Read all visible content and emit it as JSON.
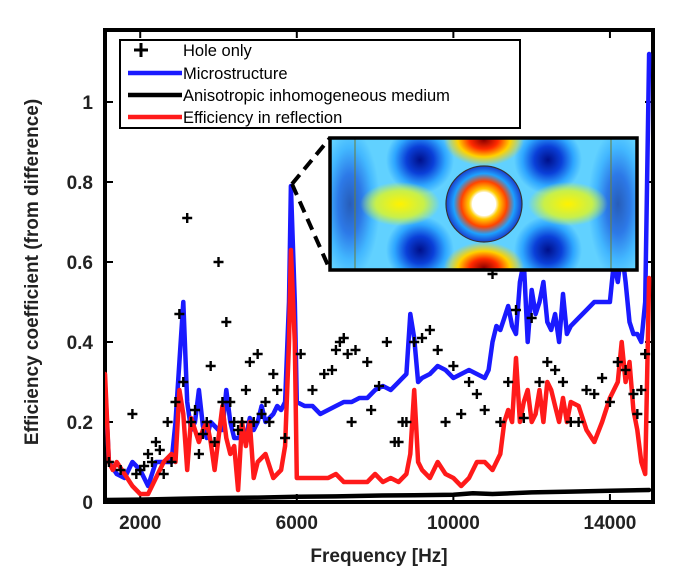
{
  "chart_data": {
    "type": "line",
    "xlabel": "Frequency [Hz]",
    "ylabel": "Efficiency coefficient (from difference)",
    "xlim": [
      1100,
      15100
    ],
    "ylim": [
      0,
      1.18
    ],
    "xticks": [
      2000,
      6000,
      10000,
      14000
    ],
    "xtick_labels": [
      "2000",
      "6000",
      "10000",
      "14000"
    ],
    "yticks": [
      0,
      0.2,
      0.4,
      0.6,
      0.8,
      1
    ],
    "ytick_labels": [
      "0",
      "0.2",
      "0.4",
      "0.6",
      "0.8",
      "1"
    ],
    "legend_position": "top-left",
    "inset": {
      "description": "field map of microstructure around hole",
      "anchor_frequency": 5900,
      "anchor_value": 0.8
    },
    "series": [
      {
        "name": "Hole only",
        "style": "scatter-plus",
        "color": "#000000",
        "x": [
          1200,
          1500,
          1800,
          1900,
          2000,
          2100,
          2200,
          2300,
          2400,
          2500,
          2600,
          2700,
          2800,
          2900,
          3000,
          3100,
          3200,
          3300,
          3400,
          3500,
          3600,
          3700,
          3800,
          3900,
          4000,
          4100,
          4200,
          4300,
          4400,
          4500,
          4600,
          4700,
          4800,
          4900,
          5000,
          5100,
          5200,
          5300,
          5400,
          5500,
          5700,
          6100,
          6400,
          6700,
          6900,
          7000,
          7100,
          7200,
          7300,
          7400,
          7500,
          7800,
          7900,
          8100,
          8300,
          8500,
          8600,
          8700,
          8800,
          9000,
          9200,
          9400,
          9600,
          9800,
          10000,
          10200,
          10400,
          10600,
          10800,
          11000,
          11200,
          11400,
          11600,
          11800,
          12000,
          12200,
          12400,
          12600,
          12800,
          13000,
          13200,
          13400,
          13600,
          13800,
          14000,
          14200,
          14400,
          14600,
          14700,
          14800,
          14900
        ],
        "y": [
          0.1,
          0.08,
          0.22,
          0.07,
          0.08,
          0.09,
          0.12,
          0.1,
          0.15,
          0.13,
          0.07,
          0.2,
          0.1,
          0.25,
          0.47,
          0.3,
          0.71,
          0.2,
          0.23,
          0.12,
          0.17,
          0.2,
          0.34,
          0.15,
          0.6,
          0.25,
          0.45,
          0.25,
          0.2,
          0.18,
          0.2,
          0.28,
          0.35,
          0.2,
          0.37,
          0.22,
          0.25,
          0.2,
          0.32,
          0.28,
          0.16,
          0.37,
          0.28,
          0.32,
          0.33,
          0.38,
          0.4,
          0.41,
          0.37,
          0.2,
          0.38,
          0.35,
          0.23,
          0.29,
          0.4,
          0.15,
          0.15,
          0.2,
          0.2,
          0.4,
          0.41,
          0.43,
          0.38,
          0.2,
          0.34,
          0.22,
          0.3,
          0.27,
          0.23,
          0.57,
          0.2,
          0.3,
          0.48,
          0.21,
          0.46,
          0.3,
          0.35,
          0.33,
          0.3,
          0.2,
          0.2,
          0.28,
          0.27,
          0.31,
          0.25,
          0.35,
          0.33,
          0.27,
          0.22,
          0.28,
          0.37
        ]
      },
      {
        "name": "Microstructure",
        "style": "line",
        "color": "#1a1aff",
        "x": [
          1100,
          1200,
          1400,
          1600,
          1800,
          2000,
          2200,
          2400,
          2600,
          2800,
          2900,
          3000,
          3100,
          3200,
          3300,
          3400,
          3500,
          3600,
          3700,
          3800,
          3900,
          4000,
          4100,
          4200,
          4300,
          4400,
          4500,
          4600,
          4700,
          4800,
          4900,
          5000,
          5100,
          5200,
          5300,
          5400,
          5500,
          5600,
          5700,
          5800,
          5850,
          5950,
          6000,
          6200,
          6400,
          6600,
          6800,
          7000,
          7200,
          7400,
          7600,
          7800,
          8000,
          8200,
          8400,
          8600,
          8800,
          8900,
          9000,
          9100,
          9200,
          9400,
          9600,
          9800,
          10000,
          10200,
          10400,
          10600,
          10800,
          10900,
          11000,
          11100,
          11200,
          11300,
          11400,
          11500,
          11600,
          11700,
          11800,
          11900,
          12000,
          12100,
          12200,
          12300,
          12400,
          12500,
          12600,
          12700,
          12800,
          12900,
          13000,
          13200,
          13400,
          13600,
          13800,
          14000,
          14100,
          14200,
          14300,
          14400,
          14500,
          14600,
          14700,
          14800,
          14900,
          15000
        ],
        "y": [
          0.3,
          0.1,
          0.07,
          0.06,
          0.1,
          0.08,
          0.04,
          0.1,
          0.1,
          0.1,
          0.2,
          0.35,
          0.5,
          0.25,
          0.18,
          0.2,
          0.28,
          0.19,
          0.16,
          0.2,
          0.19,
          0.18,
          0.18,
          0.28,
          0.2,
          0.16,
          0.16,
          0.17,
          0.16,
          0.21,
          0.18,
          0.2,
          0.24,
          0.2,
          0.21,
          0.22,
          0.24,
          0.23,
          0.25,
          0.5,
          0.79,
          0.5,
          0.25,
          0.24,
          0.24,
          0.22,
          0.23,
          0.24,
          0.25,
          0.25,
          0.26,
          0.26,
          0.28,
          0.29,
          0.28,
          0.3,
          0.32,
          0.47,
          0.41,
          0.3,
          0.31,
          0.32,
          0.34,
          0.33,
          0.31,
          0.32,
          0.33,
          0.32,
          0.31,
          0.33,
          0.4,
          0.44,
          0.43,
          0.46,
          0.49,
          0.44,
          0.42,
          0.55,
          0.6,
          0.4,
          0.53,
          0.47,
          0.5,
          0.55,
          0.45,
          0.43,
          0.47,
          0.4,
          0.52,
          0.42,
          0.44,
          0.46,
          0.48,
          0.5,
          0.5,
          0.5,
          0.6,
          0.55,
          0.63,
          0.55,
          0.45,
          0.42,
          0.42,
          0.4,
          0.5,
          1.12
        ]
      },
      {
        "name": "Anisotropic inhomogeneous medium",
        "style": "line",
        "color": "#000000",
        "x": [
          1100,
          2000,
          3000,
          4000,
          5000,
          6000,
          7000,
          8000,
          9000,
          10000,
          10500,
          11000,
          12000,
          13000,
          14000,
          15000
        ],
        "y": [
          0.005,
          0.006,
          0.008,
          0.01,
          0.011,
          0.013,
          0.014,
          0.016,
          0.017,
          0.018,
          0.022,
          0.02,
          0.024,
          0.026,
          0.028,
          0.03
        ]
      },
      {
        "name": "Efficiency in reflection",
        "style": "line",
        "color": "#ff1a1a",
        "x": [
          1100,
          1200,
          1300,
          1400,
          1600,
          1800,
          2000,
          2200,
          2400,
          2600,
          2800,
          2900,
          3000,
          3100,
          3200,
          3300,
          3400,
          3500,
          3600,
          3700,
          3800,
          3900,
          4000,
          4100,
          4200,
          4300,
          4400,
          4500,
          4600,
          4700,
          4800,
          4900,
          5000,
          5200,
          5400,
          5600,
          5700,
          5800,
          5850,
          5950,
          6000,
          6200,
          6400,
          6600,
          6800,
          7000,
          7200,
          7400,
          7600,
          7800,
          8000,
          8200,
          8400,
          8600,
          8800,
          8900,
          9000,
          9100,
          9200,
          9400,
          9600,
          9800,
          10000,
          10200,
          10400,
          10600,
          10800,
          11000,
          11200,
          11300,
          11400,
          11500,
          11600,
          11700,
          11800,
          11900,
          12000,
          12100,
          12200,
          12300,
          12400,
          12500,
          12600,
          12700,
          12800,
          12900,
          13000,
          13200,
          13400,
          13600,
          13800,
          14000,
          14200,
          14300,
          14400,
          14500,
          14600,
          14700,
          14800,
          14900,
          15000
        ],
        "y": [
          0.32,
          0.1,
          0.08,
          0.1,
          0.07,
          0.04,
          0.02,
          0.02,
          0.06,
          0.1,
          0.12,
          0.1,
          0.28,
          0.22,
          0.08,
          0.21,
          0.18,
          0.15,
          0.18,
          0.2,
          0.15,
          0.08,
          0.16,
          0.24,
          0.16,
          0.12,
          0.14,
          0.03,
          0.2,
          0.14,
          0.2,
          0.06,
          0.1,
          0.12,
          0.06,
          0.08,
          0.14,
          0.4,
          0.63,
          0.4,
          0.06,
          0.06,
          0.06,
          0.06,
          0.06,
          0.07,
          0.05,
          0.05,
          0.05,
          0.05,
          0.07,
          0.05,
          0.06,
          0.05,
          0.07,
          0.12,
          0.28,
          0.1,
          0.08,
          0.06,
          0.1,
          0.07,
          0.06,
          0.04,
          0.06,
          0.1,
          0.1,
          0.08,
          0.12,
          0.2,
          0.23,
          0.2,
          0.36,
          0.2,
          0.25,
          0.28,
          0.2,
          0.22,
          0.28,
          0.2,
          0.3,
          0.28,
          0.24,
          0.2,
          0.26,
          0.2,
          0.25,
          0.24,
          0.18,
          0.15,
          0.2,
          0.26,
          0.3,
          0.4,
          0.3,
          0.35,
          0.23,
          0.18,
          0.1,
          0.07,
          0.56
        ]
      }
    ]
  }
}
